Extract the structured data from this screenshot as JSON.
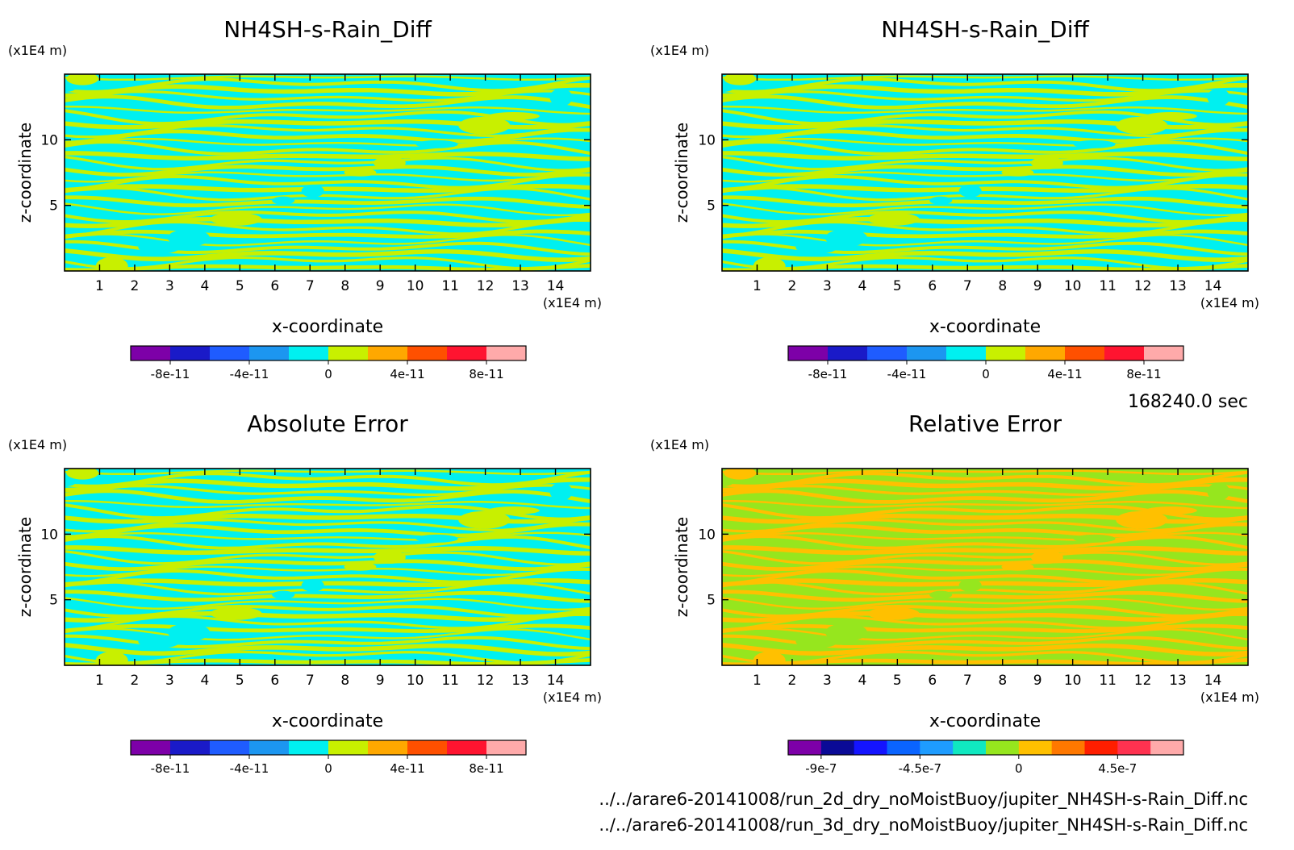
{
  "time_label": "168240.0 sec",
  "files": [
    "../../arare6-20141008/run_2d_dry_noMoistBuoy/jupiter_NH4SH-s-Rain_Diff.nc",
    "../../arare6-20141008/run_3d_dry_noMoistBuoy/jupiter_NH4SH-s-Rain_Diff.nc"
  ],
  "chart_data": [
    {
      "type": "heatmap",
      "title": "NH4SH-s-Rain_Diff",
      "xlabel": "x-coordinate",
      "ylabel": "z-coordinate",
      "x_unit": "(x1E4 m)",
      "y_unit": "(x1E4 m)",
      "xlim": [
        0,
        15
      ],
      "ylim": [
        0,
        15
      ],
      "xticks": [
        "1",
        "2",
        "3",
        "4",
        "5",
        "6",
        "7",
        "8",
        "9",
        "10",
        "11",
        "12",
        "13",
        "14"
      ],
      "yticks": [
        "5",
        "10"
      ],
      "field_values": [
        -1e-11,
        1e-11
      ],
      "colorbar": {
        "colors": [
          "#7d00a8",
          "#1a1ac8",
          "#1f5cff",
          "#1c96f0",
          "#00f0f0",
          "#c8f000",
          "#ffa800",
          "#ff5000",
          "#ff1430",
          "#ffaaaa"
        ],
        "tick_labels": [
          "-8e-11",
          "-4e-11",
          "0",
          "4e-11",
          "8e-11"
        ]
      }
    },
    {
      "type": "heatmap",
      "title": "NH4SH-s-Rain_Diff",
      "xlabel": "x-coordinate",
      "ylabel": "z-coordinate",
      "x_unit": "(x1E4 m)",
      "y_unit": "(x1E4 m)",
      "xlim": [
        0,
        15
      ],
      "ylim": [
        0,
        15
      ],
      "xticks": [
        "1",
        "2",
        "3",
        "4",
        "5",
        "6",
        "7",
        "8",
        "9",
        "10",
        "11",
        "12",
        "13",
        "14"
      ],
      "yticks": [
        "5",
        "10"
      ],
      "field_values": [
        -1e-11,
        1e-11
      ],
      "colorbar": {
        "colors": [
          "#7d00a8",
          "#1a1ac8",
          "#1f5cff",
          "#1c96f0",
          "#00f0f0",
          "#c8f000",
          "#ffa800",
          "#ff5000",
          "#ff1430",
          "#ffaaaa"
        ],
        "tick_labels": [
          "-8e-11",
          "-4e-11",
          "0",
          "4e-11",
          "8e-11"
        ]
      }
    },
    {
      "type": "heatmap",
      "title": "Absolute Error",
      "xlabel": "x-coordinate",
      "ylabel": "z-coordinate",
      "x_unit": "(x1E4 m)",
      "y_unit": "(x1E4 m)",
      "xlim": [
        0,
        15
      ],
      "ylim": [
        0,
        15
      ],
      "xticks": [
        "1",
        "2",
        "3",
        "4",
        "5",
        "6",
        "7",
        "8",
        "9",
        "10",
        "11",
        "12",
        "13",
        "14"
      ],
      "yticks": [
        "5",
        "10"
      ],
      "field_values": [
        -1e-11,
        1e-11
      ],
      "colorbar": {
        "colors": [
          "#7d00a8",
          "#1a1ac8",
          "#1f5cff",
          "#1c96f0",
          "#00f0f0",
          "#c8f000",
          "#ffa800",
          "#ff5000",
          "#ff1430",
          "#ffaaaa"
        ],
        "tick_labels": [
          "-8e-11",
          "-4e-11",
          "0",
          "4e-11",
          "8e-11"
        ]
      }
    },
    {
      "type": "heatmap",
      "title": "Relative Error",
      "xlabel": "x-coordinate",
      "ylabel": "z-coordinate",
      "x_unit": "(x1E4 m)",
      "y_unit": "(x1E4 m)",
      "xlim": [
        0,
        15
      ],
      "ylim": [
        0,
        15
      ],
      "xticks": [
        "1",
        "2",
        "3",
        "4",
        "5",
        "6",
        "7",
        "8",
        "9",
        "10",
        "11",
        "12",
        "13",
        "14"
      ],
      "yticks": [
        "5",
        "10"
      ],
      "field_values": [
        5e-08,
        2.5e-07
      ],
      "colorbar": {
        "colors": [
          "#7d00a8",
          "#0a0a96",
          "#1414ff",
          "#0a64ff",
          "#1e9cff",
          "#10e8c0",
          "#96e61e",
          "#ffc000",
          "#ff7800",
          "#ff1e00",
          "#ff3250",
          "#ffaaaa"
        ],
        "tick_labels": [
          "-9e-7",
          "-4.5e-7",
          "0",
          "4.5e-7"
        ]
      }
    }
  ]
}
